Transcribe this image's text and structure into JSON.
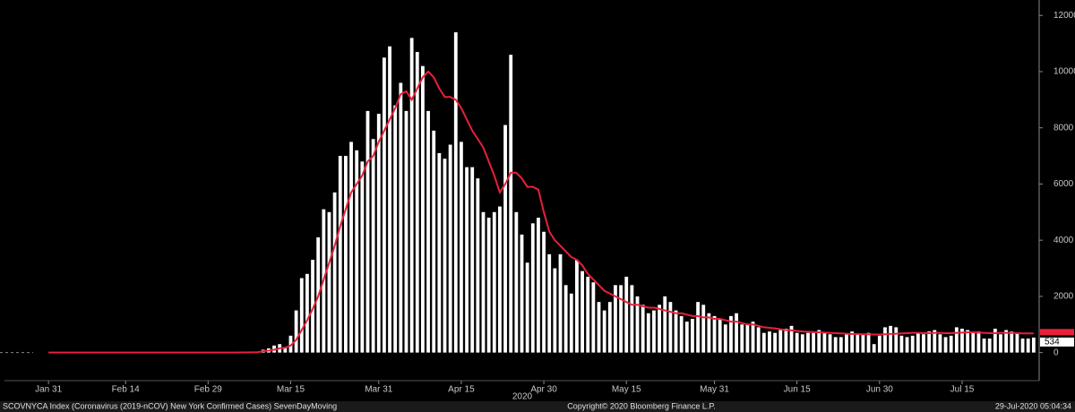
{
  "chart_data": {
    "type": "bar",
    "x": [
      "2020-01-31",
      "2020-02-29",
      "2020-03-01",
      "2020-03-02",
      "2020-03-03",
      "2020-03-04",
      "2020-03-05",
      "2020-03-06",
      "2020-03-07",
      "2020-03-08",
      "2020-03-09",
      "2020-03-10",
      "2020-03-11",
      "2020-03-12",
      "2020-03-13",
      "2020-03-14",
      "2020-03-15",
      "2020-03-16",
      "2020-03-17",
      "2020-03-18",
      "2020-03-19",
      "2020-03-20",
      "2020-03-21",
      "2020-03-22",
      "2020-03-23",
      "2020-03-24",
      "2020-03-25",
      "2020-03-26",
      "2020-03-27",
      "2020-03-28",
      "2020-03-29",
      "2020-03-30",
      "2020-03-31",
      "2020-04-01",
      "2020-04-02",
      "2020-04-03",
      "2020-04-04",
      "2020-04-05",
      "2020-04-06",
      "2020-04-07",
      "2020-04-08",
      "2020-04-09",
      "2020-04-10",
      "2020-04-11",
      "2020-04-12",
      "2020-04-13",
      "2020-04-14",
      "2020-04-15",
      "2020-04-16",
      "2020-04-17",
      "2020-04-18",
      "2020-04-19",
      "2020-04-20",
      "2020-04-21",
      "2020-04-22",
      "2020-04-23",
      "2020-04-24",
      "2020-04-25",
      "2020-04-26",
      "2020-04-27",
      "2020-04-28",
      "2020-04-29",
      "2020-04-30",
      "2020-05-01",
      "2020-05-02",
      "2020-05-03",
      "2020-05-04",
      "2020-05-05",
      "2020-05-06",
      "2020-05-07",
      "2020-05-08",
      "2020-05-09",
      "2020-05-10",
      "2020-05-11",
      "2020-05-12",
      "2020-05-13",
      "2020-05-14",
      "2020-05-15",
      "2020-05-16",
      "2020-05-17",
      "2020-05-18",
      "2020-05-19",
      "2020-05-20",
      "2020-05-21",
      "2020-05-22",
      "2020-05-23",
      "2020-05-24",
      "2020-05-25",
      "2020-05-26",
      "2020-05-27",
      "2020-05-28",
      "2020-05-29",
      "2020-05-30",
      "2020-05-31",
      "2020-06-01",
      "2020-06-02",
      "2020-06-03",
      "2020-06-04",
      "2020-06-05",
      "2020-06-06",
      "2020-06-07",
      "2020-06-08",
      "2020-06-09",
      "2020-06-10",
      "2020-06-11",
      "2020-06-12",
      "2020-06-13",
      "2020-06-14",
      "2020-06-15",
      "2020-06-16",
      "2020-06-17",
      "2020-06-18",
      "2020-06-19",
      "2020-06-20",
      "2020-06-21",
      "2020-06-22",
      "2020-06-23",
      "2020-06-24",
      "2020-06-25",
      "2020-06-26",
      "2020-06-27",
      "2020-06-28",
      "2020-06-29",
      "2020-06-30",
      "2020-07-01",
      "2020-07-02",
      "2020-07-03",
      "2020-07-04",
      "2020-07-05",
      "2020-07-06",
      "2020-07-07",
      "2020-07-08",
      "2020-07-09",
      "2020-07-10",
      "2020-07-11",
      "2020-07-12",
      "2020-07-13",
      "2020-07-14",
      "2020-07-15",
      "2020-07-16",
      "2020-07-17",
      "2020-07-18",
      "2020-07-19",
      "2020-07-20",
      "2020-07-21",
      "2020-07-22",
      "2020-07-23",
      "2020-07-24",
      "2020-07-25",
      "2020-07-26",
      "2020-07-27",
      "2020-07-28"
    ],
    "series": [
      {
        "type": "bar",
        "color": "#ffffff",
        "values": [
          0,
          0,
          0,
          0,
          1,
          1,
          3,
          4,
          11,
          21,
          27,
          100,
          150,
          250,
          300,
          200,
          600,
          1500,
          2650,
          2800,
          3300,
          4100,
          5100,
          5000,
          5700,
          7000,
          7000,
          7500,
          7200,
          6800,
          8600,
          7600,
          8500,
          10500,
          10900,
          8800,
          9600,
          8600,
          11200,
          10700,
          10200,
          8600,
          7900,
          7100,
          6900,
          7400,
          11400,
          7500,
          6600,
          6600,
          6200,
          5000,
          4800,
          5000,
          5200,
          8100,
          10600,
          5000,
          4200,
          3200,
          4600,
          4800,
          4300,
          3500,
          3000,
          3500,
          2400,
          2100,
          3300,
          2900,
          2700,
          2500,
          1800,
          1500,
          1800,
          2400,
          2400,
          2700,
          2400,
          2000,
          1700,
          1400,
          1500,
          1700,
          2000,
          1800,
          1500,
          1300,
          1100,
          1200,
          1800,
          1700,
          1400,
          1300,
          1200,
          1000,
          1300,
          1400,
          1000,
          1000,
          1100,
          900,
          700,
          750,
          700,
          800,
          850,
          950,
          700,
          650,
          700,
          700,
          800,
          700,
          650,
          550,
          550,
          650,
          750,
          650,
          650,
          700,
          300,
          600,
          900,
          950,
          900,
          600,
          550,
          600,
          700,
          650,
          750,
          800,
          650,
          550,
          600,
          900,
          850,
          800,
          750,
          750,
          500,
          500,
          850,
          650,
          800,
          750,
          700,
          500,
          500,
          534
        ]
      },
      {
        "type": "line",
        "color": "#e8203a",
        "values": [
          0,
          0,
          0,
          0,
          0,
          1,
          2,
          3,
          5,
          8,
          12,
          50,
          70,
          100,
          150,
          170,
          250,
          450,
          800,
          1150,
          1550,
          2000,
          2600,
          3200,
          3800,
          4500,
          5100,
          5700,
          6000,
          6300,
          6800,
          7000,
          7500,
          7900,
          8300,
          8700,
          9200,
          9300,
          9000,
          9400,
          9800,
          10000,
          9800,
          9400,
          9100,
          9100,
          9000,
          8700,
          8300,
          7900,
          7600,
          7300,
          6800,
          6300,
          5700,
          6000,
          6400,
          6400,
          6200,
          5900,
          5900,
          5800,
          5000,
          4300,
          4000,
          3800,
          3600,
          3400,
          3300,
          3100,
          2800,
          2600,
          2400,
          2200,
          2100,
          2000,
          1900,
          1800,
          1700,
          1700,
          1650,
          1600,
          1600,
          1550,
          1500,
          1450,
          1400,
          1400,
          1350,
          1300,
          1300,
          1250,
          1250,
          1200,
          1200,
          1150,
          1100,
          1100,
          1050,
          1000,
          1000,
          950,
          900,
          880,
          860,
          830,
          800,
          790,
          770,
          750,
          740,
          730,
          720,
          710,
          700,
          690,
          680,
          670,
          660,
          660,
          650,
          650,
          640,
          640,
          650,
          660,
          670,
          680,
          690,
          700,
          700,
          690,
          690,
          700,
          700,
          690,
          690,
          700,
          710,
          720,
          720,
          710,
          700,
          690,
          690,
          700,
          700,
          700,
          690,
          680,
          680,
          680
        ]
      }
    ],
    "xlim": [
      "2020-01-23",
      "2020-07-29"
    ],
    "xticks": [
      {
        "value": "2020-01-31",
        "label": "Jan 31"
      },
      {
        "value": "2020-02-14",
        "label": "Feb 14"
      },
      {
        "value": "2020-02-29",
        "label": "Feb 29"
      },
      {
        "value": "2020-03-15",
        "label": "Mar 15"
      },
      {
        "value": "2020-03-31",
        "label": "Mar 31"
      },
      {
        "value": "2020-04-15",
        "label": "Apr 15"
      },
      {
        "value": "2020-04-30",
        "label": "Apr 30"
      },
      {
        "value": "2020-05-15",
        "label": "May 15"
      },
      {
        "value": "2020-05-31",
        "label": "May 31"
      },
      {
        "value": "2020-06-15",
        "label": "Jun 15"
      },
      {
        "value": "2020-06-30",
        "label": "Jun 30"
      },
      {
        "value": "2020-07-15",
        "label": "Jul 15"
      }
    ],
    "x_year_label": "2020",
    "ylim": [
      -1000,
      12550
    ],
    "yticks": [
      0,
      2000,
      4000,
      6000,
      8000,
      10000,
      12000
    ]
  },
  "footer": {
    "source": "SCOVNYCA Index (Coronavirus (2019-nCOV) New York Confirmed Cases) SevenDayMoving",
    "copyright": "Copyright© 2020 Bloomberg Finance L.P.",
    "timestamp": "29-Jul-2020 05:04:34"
  }
}
